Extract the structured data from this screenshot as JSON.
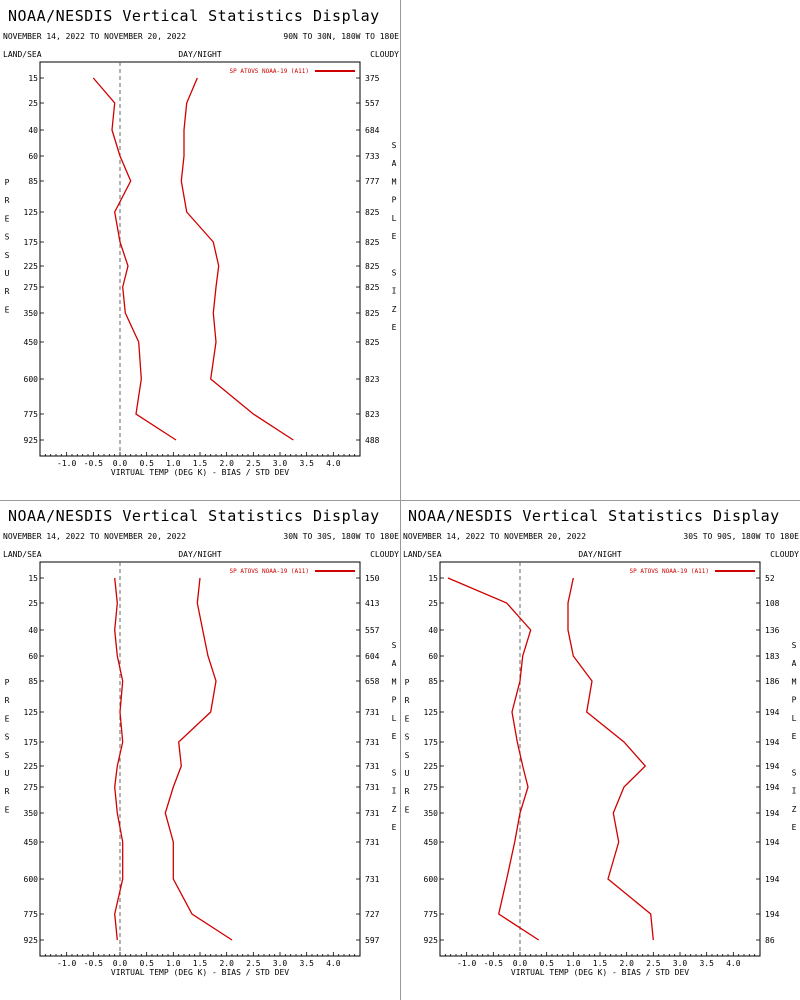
{
  "panels": [
    {
      "title": "NOAA/NESDIS Vertical Statistics Display",
      "dates": "NOVEMBER 14, 2022 TO NOVEMBER 20, 2022",
      "region": "90N TO 30N, 180W TO 180E",
      "left_label": "LAND/SEA",
      "center_label": "DAY/NIGHT",
      "right_label": "CLOUDY",
      "chart_data": {
        "type": "line",
        "legend": "SP ATOVS NOAA-19 (A11)",
        "xlabel": "VIRTUAL TEMP (DEG K) - BIAS / STD DEV",
        "ylabel": "PRESSURE",
        "y2label": "SAMPLE SIZE",
        "xlim": [
          -1.5,
          4.5
        ],
        "xticks": [
          "-1.0",
          "-0.5",
          "0.0",
          "0.5",
          "1.0",
          "1.5",
          "2.0",
          "2.5",
          "3.0",
          "3.5",
          "4.0"
        ],
        "pressure_levels": [
          "15",
          "25",
          "40",
          "60",
          "85",
          "125",
          "175",
          "225",
          "275",
          "350",
          "450",
          "600",
          "775",
          "925"
        ],
        "sample_size": [
          "375",
          "557",
          "684",
          "733",
          "777",
          "825",
          "825",
          "825",
          "825",
          "825",
          "825",
          "823",
          "823",
          "488"
        ],
        "series": [
          {
            "name": "bias",
            "values": [
              -0.5,
              -0.1,
              -0.15,
              0.0,
              0.2,
              -0.1,
              0.0,
              0.15,
              0.05,
              0.1,
              0.35,
              0.4,
              0.3,
              1.05
            ],
            "color": "#d00000"
          },
          {
            "name": "std dev",
            "values": [
              1.45,
              1.25,
              1.2,
              1.2,
              1.15,
              1.25,
              1.75,
              1.85,
              1.8,
              1.75,
              1.8,
              1.7,
              2.5,
              3.25
            ],
            "color": "#d00000"
          }
        ]
      }
    },
    {
      "title": "NOAA/NESDIS Vertical Statistics Display",
      "dates": "NOVEMBER 14, 2022 TO NOVEMBER 20, 2022",
      "region": "30N TO 30S, 180W TO 180E",
      "left_label": "LAND/SEA",
      "center_label": "DAY/NIGHT",
      "right_label": "CLOUDY",
      "chart_data": {
        "type": "line",
        "legend": "SP ATOVS NOAA-19 (A11)",
        "xlabel": "VIRTUAL TEMP (DEG K) - BIAS / STD DEV",
        "ylabel": "PRESSURE",
        "y2label": "SAMPLE SIZE",
        "xlim": [
          -1.5,
          4.5
        ],
        "xticks": [
          "-1.0",
          "-0.5",
          "0.0",
          "0.5",
          "1.0",
          "1.5",
          "2.0",
          "2.5",
          "3.0",
          "3.5",
          "4.0"
        ],
        "pressure_levels": [
          "15",
          "25",
          "40",
          "60",
          "85",
          "125",
          "175",
          "225",
          "275",
          "350",
          "450",
          "600",
          "775",
          "925"
        ],
        "sample_size": [
          "150",
          "413",
          "557",
          "604",
          "658",
          "731",
          "731",
          "731",
          "731",
          "731",
          "731",
          "731",
          "727",
          "597"
        ],
        "series": [
          {
            "name": "bias",
            "values": [
              -0.1,
              -0.05,
              -0.1,
              -0.05,
              0.05,
              0.0,
              0.05,
              -0.05,
              -0.1,
              -0.05,
              0.05,
              0.05,
              -0.1,
              -0.05
            ],
            "color": "#d00000"
          },
          {
            "name": "std dev",
            "values": [
              1.5,
              1.45,
              1.55,
              1.65,
              1.8,
              1.7,
              1.1,
              1.15,
              1.0,
              0.85,
              1.0,
              1.0,
              1.35,
              2.1
            ],
            "color": "#d00000"
          }
        ]
      }
    },
    {
      "title": "NOAA/NESDIS Vertical Statistics Display",
      "dates": "NOVEMBER 14, 2022 TO NOVEMBER 20, 2022",
      "region": "30S TO 90S, 180W TO 180E",
      "left_label": "LAND/SEA",
      "center_label": "DAY/NIGHT",
      "right_label": "CLOUDY",
      "chart_data": {
        "type": "line",
        "legend": "SP ATOVS NOAA-19 (A11)",
        "xlabel": "VIRTUAL TEMP (DEG K) - BIAS / STD DEV",
        "ylabel": "PRESSURE",
        "y2label": "SAMPLE SIZE",
        "xlim": [
          -1.5,
          4.5
        ],
        "xticks": [
          "-1.0",
          "-0.5",
          "0.0",
          "0.5",
          "1.0",
          "1.5",
          "2.0",
          "2.5",
          "3.0",
          "3.5",
          "4.0"
        ],
        "pressure_levels": [
          "15",
          "25",
          "40",
          "60",
          "85",
          "125",
          "175",
          "225",
          "275",
          "350",
          "450",
          "600",
          "775",
          "925"
        ],
        "sample_size": [
          "52",
          "108",
          "136",
          "183",
          "186",
          "194",
          "194",
          "194",
          "194",
          "194",
          "194",
          "194",
          "194",
          "86"
        ],
        "series": [
          {
            "name": "bias",
            "values": [
              -1.35,
              -0.25,
              0.2,
              0.05,
              0.0,
              -0.15,
              -0.05,
              0.05,
              0.15,
              0.0,
              -0.1,
              -0.25,
              -0.4,
              0.35
            ],
            "color": "#d00000"
          },
          {
            "name": "std dev",
            "values": [
              1.0,
              0.9,
              0.9,
              1.0,
              1.35,
              1.25,
              1.95,
              2.35,
              1.95,
              1.75,
              1.85,
              1.65,
              2.45,
              2.5
            ],
            "color": "#d00000"
          }
        ]
      }
    }
  ]
}
